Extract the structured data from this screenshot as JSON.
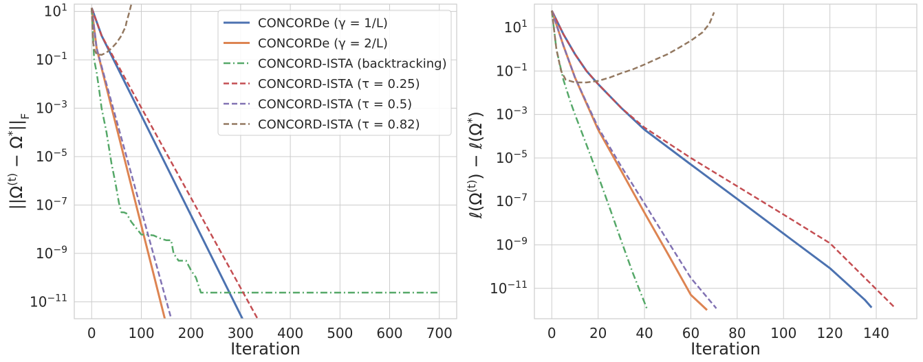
{
  "colors": {
    "blue": "#4c72b0",
    "orange": "#dd8452",
    "green": "#55a868",
    "red": "#c44e52",
    "purple": "#8172b3",
    "brown": "#937860"
  },
  "chart_data": [
    {
      "type": "line",
      "yscale": "log",
      "xlabel": "Iteration",
      "ylabel": "||Ω(t) − Ω*||F",
      "xlim": [
        -35,
        735
      ],
      "ylim": [
        2e-12,
        20
      ],
      "xticks": [
        {
          "v": 0,
          "label": "0"
        },
        {
          "v": 100,
          "label": "100"
        },
        {
          "v": 200,
          "label": "200"
        },
        {
          "v": 300,
          "label": "300"
        },
        {
          "v": 400,
          "label": "400"
        },
        {
          "v": 500,
          "label": "500"
        },
        {
          "v": 600,
          "label": "600"
        },
        {
          "v": 700,
          "label": "700"
        }
      ],
      "yticks": [
        {
          "exp": 1,
          "label": "10"
        },
        {
          "exp": -1,
          "label": "10"
        },
        {
          "exp": -3,
          "label": "10"
        },
        {
          "exp": -5,
          "label": "10"
        },
        {
          "exp": -7,
          "label": "10"
        },
        {
          "exp": -9,
          "label": "10"
        },
        {
          "exp": -11,
          "label": "10"
        }
      ],
      "grid": true,
      "legend_position": "top-right",
      "series": [
        {
          "name": "CONCORDe (γ = 1/L)",
          "color": "blue",
          "dash": "solid",
          "x": [
            0,
            20,
            309
          ],
          "y": [
            14,
            1.0,
            1.2e-12
          ]
        },
        {
          "name": "CONCORDe (γ = 2/L)",
          "color": "orange",
          "dash": "solid",
          "x": [
            0,
            10,
            150
          ],
          "y": [
            14,
            0.3,
            1.2e-12
          ]
        },
        {
          "name": "CONCORD-ISTA (backtracking)",
          "color": "green",
          "dash": "dashdot",
          "x": [
            0,
            5,
            10,
            15,
            20,
            30,
            40,
            48,
            55,
            60,
            65,
            70,
            80,
            100,
            110,
            125,
            140,
            150,
            160,
            165,
            175,
            190,
            200,
            210,
            220,
            230,
            240,
            250,
            300,
            400,
            500,
            600,
            700
          ],
          "y": [
            14,
            0.1,
            0.03,
            0.006,
            0.001,
            0.0001,
            5e-06,
            8e-07,
            1.2e-07,
            5e-08,
            5e-08,
            4.5e-08,
            2e-08,
            6e-09,
            6e-09,
            5.5e-09,
            4e-09,
            3.5e-09,
            3.5e-09,
            1e-09,
            5e-10,
            5e-10,
            2e-10,
            1e-10,
            2.4e-11,
            2.4e-11,
            2.4e-11,
            2.4e-11,
            2.4e-11,
            2.4e-11,
            2.4e-11,
            2.4e-11,
            2.4e-11
          ]
        },
        {
          "name": "CONCORD-ISTA (τ = 0.25)",
          "color": "red",
          "dash": "dashed",
          "x": [
            0,
            20,
            340
          ],
          "y": [
            14,
            1.0,
            1.2e-12
          ]
        },
        {
          "name": "CONCORD-ISTA (τ = 0.5)",
          "color": "purple",
          "dash": "dashed",
          "x": [
            0,
            10,
            162
          ],
          "y": [
            14,
            0.3,
            1.5e-12
          ]
        },
        {
          "name": "CONCORD-ISTA (τ = 0.82)",
          "color": "brown",
          "dash": "dashed",
          "x": [
            0,
            3,
            6,
            10,
            20,
            30,
            40,
            50,
            60,
            65,
            68,
            70,
            75,
            80
          ],
          "y": [
            14,
            0.5,
            0.25,
            0.17,
            0.16,
            0.2,
            0.3,
            0.5,
            1.0,
            1.7,
            2.2,
            3.5,
            8,
            20
          ]
        }
      ]
    },
    {
      "type": "line",
      "yscale": "log",
      "xlabel": "Iteration",
      "ylabel": "ℓ(Ω(t)) − ℓ(Ω*)",
      "xlim": [
        -7.5,
        157.5
      ],
      "ylim": [
        4e-13,
        120
      ],
      "xticks": [
        {
          "v": 0,
          "label": "0"
        },
        {
          "v": 20,
          "label": "20"
        },
        {
          "v": 40,
          "label": "40"
        },
        {
          "v": 60,
          "label": "60"
        },
        {
          "v": 80,
          "label": "80"
        },
        {
          "v": 100,
          "label": "100"
        },
        {
          "v": 120,
          "label": "120"
        },
        {
          "v": 140,
          "label": "140"
        }
      ],
      "yticks": [
        {
          "exp": 1,
          "label": "10"
        },
        {
          "exp": -1,
          "label": "10"
        },
        {
          "exp": -3,
          "label": "10"
        },
        {
          "exp": -5,
          "label": "10"
        },
        {
          "exp": -7,
          "label": "10"
        },
        {
          "exp": -9,
          "label": "10"
        },
        {
          "exp": -11,
          "label": "10"
        }
      ],
      "grid": true,
      "series": [
        {
          "name": "CONCORDe (γ = 1/L)",
          "color": "blue",
          "dash": "solid",
          "x": [
            0,
            5,
            10,
            15,
            20,
            30,
            40,
            60,
            80,
            100,
            120,
            135,
            138
          ],
          "y": [
            60,
            5,
            0.6,
            0.1,
            0.025,
            0.002,
            0.0002,
            5e-06,
            1.3e-07,
            3.3e-09,
            8.5e-11,
            3e-12,
            1.3e-12
          ]
        },
        {
          "name": "CONCORDe (γ = 2/L)",
          "color": "orange",
          "dash": "solid",
          "x": [
            0,
            5,
            10,
            20,
            30,
            40,
            50,
            60,
            67
          ],
          "y": [
            60,
            1.5,
            0.05,
            0.0002,
            2.5e-06,
            3e-08,
            4e-10,
            5e-12,
            1e-12
          ]
        },
        {
          "name": "CONCORD-ISTA (backtracking)",
          "color": "green",
          "dash": "dashdot",
          "x": [
            0,
            2,
            5,
            8,
            10,
            15,
            20,
            25,
            30,
            35,
            41
          ],
          "y": [
            60,
            1.0,
            0.04,
            0.004,
            0.001,
            4e-05,
            1.5e-06,
            5e-08,
            1.5e-09,
            5e-11,
            1.2e-12
          ]
        },
        {
          "name": "CONCORD-ISTA (τ = 0.25)",
          "color": "red",
          "dash": "dashed",
          "x": [
            0,
            5,
            10,
            15,
            20,
            30,
            40,
            60,
            80,
            100,
            120,
            148
          ],
          "y": [
            60,
            5,
            0.6,
            0.1,
            0.025,
            0.002,
            0.00025,
            1e-05,
            5e-07,
            2.5e-08,
            1.2e-09,
            1.3e-12
          ]
        },
        {
          "name": "CONCORD-ISTA (τ = 0.5)",
          "color": "purple",
          "dash": "dashed",
          "x": [
            0,
            5,
            10,
            20,
            30,
            40,
            50,
            60,
            71
          ],
          "y": [
            60,
            1.5,
            0.05,
            0.00025,
            4e-06,
            8e-08,
            1.5e-09,
            3e-11,
            1.2e-12
          ]
        },
        {
          "name": "CONCORD-ISTA (τ = 0.82)",
          "color": "brown",
          "dash": "dashed",
          "x": [
            0,
            2,
            4,
            6,
            10,
            15,
            20,
            25,
            30,
            35,
            40,
            45,
            50,
            55,
            60,
            65,
            68,
            70
          ],
          "y": [
            60,
            1,
            0.1,
            0.04,
            0.03,
            0.03,
            0.035,
            0.05,
            0.08,
            0.12,
            0.2,
            0.35,
            0.6,
            1.2,
            2.5,
            6,
            15,
            50
          ]
        }
      ]
    }
  ]
}
